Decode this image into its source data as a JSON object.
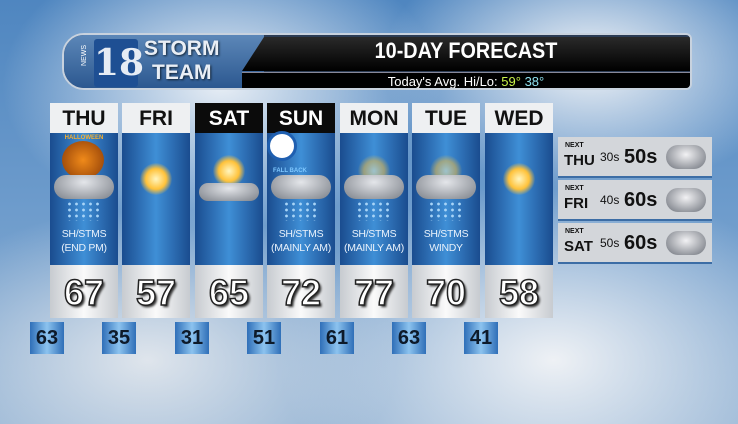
{
  "header": {
    "brand_number": "18",
    "brand_news": "NEWS",
    "brand_line1": "STORM",
    "brand_line2": "TEAM",
    "title": "10-DAY FORECAST",
    "avg_label": "Today's Avg. Hi/Lo:",
    "avg_hi": "59°",
    "avg_lo": "38°"
  },
  "days": [
    {
      "day": "THU",
      "cond1": "SH/STMS",
      "cond2": "(END PM)",
      "high": "67",
      "low": "63",
      "icon": "halloween-rain",
      "badge": "HALLOWEEN"
    },
    {
      "day": "FRI",
      "cond1": "",
      "cond2": "",
      "high": "57",
      "low": "35",
      "icon": "sunny"
    },
    {
      "day": "SAT",
      "cond1": "",
      "cond2": "",
      "high": "65",
      "low": "31",
      "icon": "partly-sunny"
    },
    {
      "day": "SUN",
      "cond1": "SH/STMS",
      "cond2": "(MAINLY AM)",
      "high": "72",
      "low": "51",
      "icon": "fall-back-rain",
      "badge": "FALL BACK"
    },
    {
      "day": "MON",
      "cond1": "SH/STMS",
      "cond2": "(MAINLY AM)",
      "high": "77",
      "low": "61",
      "icon": "rain"
    },
    {
      "day": "TUE",
      "cond1": "SH/STMS",
      "cond2": "WINDY",
      "high": "70",
      "low": "63",
      "icon": "rain"
    },
    {
      "day": "WED",
      "cond1": "",
      "cond2": "",
      "high": "58",
      "low": "41",
      "icon": "sunny"
    }
  ],
  "extended": [
    {
      "prefix": "NEXT",
      "day": "THU",
      "low": "30s",
      "high": "50s",
      "icon": "partly-cloudy"
    },
    {
      "prefix": "NEXT",
      "day": "FRI",
      "low": "40s",
      "high": "60s",
      "icon": "rain"
    },
    {
      "prefix": "NEXT",
      "day": "SAT",
      "low": "50s",
      "high": "60s",
      "icon": "rain"
    }
  ]
}
